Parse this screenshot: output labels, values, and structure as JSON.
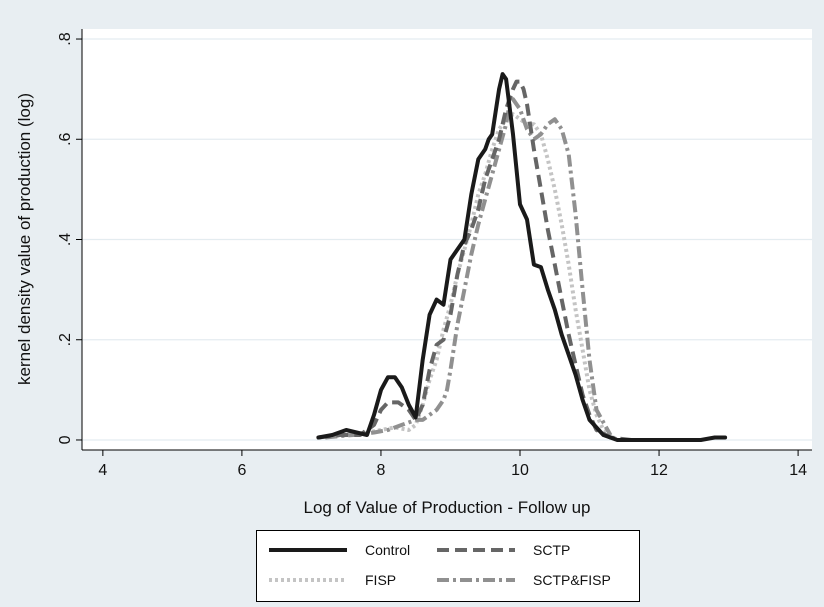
{
  "chart_data": {
    "type": "line",
    "xlabel": "Log of Value of Production - Follow up",
    "ylabel": "kernel density value of production (log)",
    "xlim": [
      3.7,
      14.2
    ],
    "ylim": [
      -0.02,
      0.82
    ],
    "xticks": [
      4,
      6,
      8,
      10,
      12,
      14
    ],
    "yticks": [
      0,
      0.2,
      0.4,
      0.6,
      0.8
    ],
    "ytick_labels": [
      "0",
      ".2",
      ".4",
      ".6",
      ".8"
    ],
    "grid": "horizontal",
    "legend_position": "bottom",
    "series": [
      {
        "name": "Control",
        "color": "#1a1a1a",
        "x": [
          7.1,
          7.3,
          7.5,
          7.65,
          7.8,
          7.9,
          8.0,
          8.1,
          8.2,
          8.3,
          8.4,
          8.5,
          8.6,
          8.7,
          8.8,
          8.9,
          9.0,
          9.1,
          9.2,
          9.3,
          9.4,
          9.5,
          9.55,
          9.6,
          9.7,
          9.75,
          9.8,
          9.9,
          10.0,
          10.1,
          10.2,
          10.3,
          10.4,
          10.5,
          10.6,
          10.7,
          10.8,
          10.9,
          11.0,
          11.2,
          11.4,
          12.0,
          12.6,
          12.8,
          12.95
        ],
        "y": [
          0.005,
          0.01,
          0.02,
          0.015,
          0.01,
          0.05,
          0.1,
          0.125,
          0.125,
          0.105,
          0.07,
          0.045,
          0.16,
          0.25,
          0.28,
          0.27,
          0.36,
          0.38,
          0.4,
          0.49,
          0.56,
          0.58,
          0.6,
          0.61,
          0.7,
          0.73,
          0.72,
          0.61,
          0.47,
          0.44,
          0.35,
          0.345,
          0.3,
          0.26,
          0.21,
          0.17,
          0.13,
          0.08,
          0.04,
          0.01,
          0.0,
          0.0,
          0.0,
          0.005,
          0.005
        ]
      },
      {
        "name": "SCTP",
        "color": "#666666",
        "x": [
          7.1,
          7.4,
          7.7,
          7.9,
          8.0,
          8.1,
          8.25,
          8.4,
          8.5,
          8.6,
          8.7,
          8.8,
          8.9,
          9.0,
          9.1,
          9.2,
          9.3,
          9.4,
          9.5,
          9.6,
          9.7,
          9.8,
          9.9,
          9.95,
          10.0,
          10.05,
          10.1,
          10.2,
          10.3,
          10.4,
          10.5,
          10.6,
          10.7,
          10.8,
          10.9,
          11.0,
          11.1,
          11.3,
          11.6
        ],
        "y": [
          0.005,
          0.01,
          0.01,
          0.03,
          0.06,
          0.075,
          0.075,
          0.06,
          0.04,
          0.07,
          0.14,
          0.19,
          0.2,
          0.25,
          0.33,
          0.39,
          0.42,
          0.46,
          0.52,
          0.56,
          0.6,
          0.66,
          0.7,
          0.715,
          0.715,
          0.7,
          0.67,
          0.58,
          0.5,
          0.42,
          0.35,
          0.28,
          0.21,
          0.15,
          0.09,
          0.05,
          0.02,
          0.005,
          0.0
        ]
      },
      {
        "name": "FISP",
        "color": "#c4c4c4",
        "x": [
          7.1,
          7.5,
          7.8,
          8.0,
          8.2,
          8.4,
          8.5,
          8.6,
          8.7,
          8.8,
          8.9,
          9.0,
          9.1,
          9.2,
          9.3,
          9.4,
          9.5,
          9.6,
          9.7,
          9.8,
          9.9,
          10.0,
          10.1,
          10.2,
          10.3,
          10.4,
          10.5,
          10.6,
          10.7,
          10.8,
          10.9,
          11.0,
          11.1,
          11.2,
          11.4
        ],
        "y": [
          0.005,
          0.01,
          0.015,
          0.02,
          0.025,
          0.02,
          0.03,
          0.07,
          0.12,
          0.16,
          0.22,
          0.27,
          0.33,
          0.38,
          0.43,
          0.49,
          0.53,
          0.58,
          0.62,
          0.64,
          0.65,
          0.64,
          0.63,
          0.63,
          0.61,
          0.56,
          0.5,
          0.43,
          0.35,
          0.26,
          0.18,
          0.1,
          0.05,
          0.02,
          0.0
        ]
      },
      {
        "name": "SCTP&FISP",
        "color": "#909090",
        "x": [
          7.2,
          7.6,
          7.9,
          8.1,
          8.3,
          8.5,
          8.6,
          8.7,
          8.8,
          8.9,
          8.95,
          9.0,
          9.1,
          9.2,
          9.3,
          9.4,
          9.5,
          9.6,
          9.7,
          9.8,
          9.85,
          9.9,
          10.0,
          10.1,
          10.2,
          10.3,
          10.4,
          10.5,
          10.6,
          10.7,
          10.8,
          10.9,
          11.0,
          11.1,
          11.3
        ],
        "y": [
          0.005,
          0.01,
          0.015,
          0.02,
          0.03,
          0.04,
          0.04,
          0.05,
          0.06,
          0.08,
          0.1,
          0.14,
          0.23,
          0.3,
          0.37,
          0.43,
          0.48,
          0.53,
          0.58,
          0.63,
          0.67,
          0.68,
          0.66,
          0.62,
          0.6,
          0.61,
          0.63,
          0.64,
          0.62,
          0.57,
          0.45,
          0.3,
          0.16,
          0.06,
          0.01
        ]
      }
    ]
  }
}
